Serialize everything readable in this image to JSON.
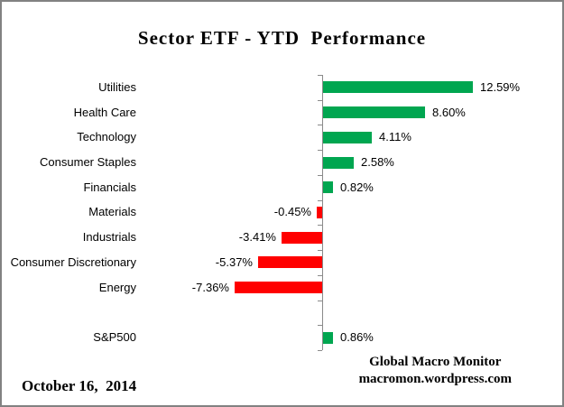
{
  "title": "Sector ETF - YTD  Performance",
  "footer": {
    "date": "October 16,  2014",
    "credit_line1": "Global Macro Monitor",
    "credit_line2": "macromon.wordpress.com"
  },
  "colors": {
    "positive_bar": "#00A650",
    "negative_bar": "#FF0000",
    "axis": "#8A8A8A",
    "text": "#000000",
    "frame_border": "#828282",
    "background": "#FFFFFF"
  },
  "chart_data": {
    "type": "bar",
    "orientation": "horizontal",
    "title": "Sector ETF - YTD  Performance",
    "categories": [
      "Utilities",
      "Health Care",
      "Technology",
      "Consumer Staples",
      "Financials",
      "Materials",
      "Industrials",
      "Consumer Discretionary",
      "Energy",
      "",
      "S&P500"
    ],
    "values": [
      12.59,
      8.6,
      4.11,
      2.58,
      0.82,
      -0.45,
      -3.41,
      -5.37,
      -7.36,
      null,
      0.86
    ],
    "value_labels": [
      "12.59%",
      "8.60%",
      "4.11%",
      "2.58%",
      "0.82%",
      "-0.45%",
      "-3.41%",
      "-5.37%",
      "-7.36%",
      "",
      "0.86%"
    ],
    "xlabel": "",
    "ylabel": "",
    "xlim_percent": [
      -8,
      13
    ],
    "grid": false,
    "legend": false,
    "value_axis_labels_visible": false,
    "bar_label_position": "outside_end",
    "category_axis_ticks": "outside"
  }
}
